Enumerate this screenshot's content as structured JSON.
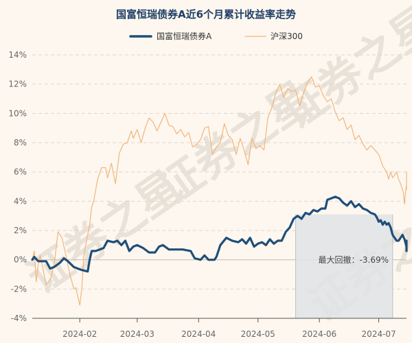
{
  "chart_data": {
    "type": "line",
    "title": "国富恒瑞债券A近6个月累计收益率走势",
    "xlabel": "",
    "ylabel": "",
    "ylim": [
      -4,
      14
    ],
    "y_ticks": [
      -4,
      -2,
      0,
      2,
      4,
      6,
      8,
      10,
      12,
      14
    ],
    "y_tick_labels": [
      "-4%",
      "-2%",
      "0%",
      "2%",
      "4%",
      "6%",
      "8%",
      "10%",
      "12%",
      "14%"
    ],
    "x_range": [
      "2024-01-08",
      "2024-07-15"
    ],
    "x_ticks": [
      {
        "date": "2024-02-01",
        "label": "2024-02"
      },
      {
        "date": "2024-03-01",
        "label": "2024-03"
      },
      {
        "date": "2024-04-01",
        "label": "2024-04"
      },
      {
        "date": "2024-05-01",
        "label": "2024-05"
      },
      {
        "date": "2024-06-01",
        "label": "2024-06"
      },
      {
        "date": "2024-07-01",
        "label": "2024-07"
      }
    ],
    "legend_position": "top",
    "grid": true,
    "drawdown": {
      "label": "最大回撤：-3.69%",
      "start": "2024-05-20",
      "end": "2024-07-08"
    },
    "series": [
      {
        "name": "国富恒瑞债券A",
        "color": "#1f4e79",
        "points": [
          [
            "2024-01-08",
            0.0
          ],
          [
            "2024-01-09",
            0.2
          ],
          [
            "2024-01-11",
            -0.1
          ],
          [
            "2024-01-15",
            -0.1
          ],
          [
            "2024-01-17",
            -0.6
          ],
          [
            "2024-01-19",
            -0.5
          ],
          [
            "2024-01-22",
            -0.2
          ],
          [
            "2024-01-24",
            0.1
          ],
          [
            "2024-01-26",
            -0.1
          ],
          [
            "2024-01-29",
            -0.5
          ],
          [
            "2024-01-31",
            -0.6
          ],
          [
            "2024-02-02",
            -0.7
          ],
          [
            "2024-02-05",
            -0.8
          ],
          [
            "2024-02-06",
            0.0
          ],
          [
            "2024-02-07",
            0.6
          ],
          [
            "2024-02-09",
            0.6
          ],
          [
            "2024-02-13",
            0.8
          ],
          [
            "2024-02-15",
            1.3
          ],
          [
            "2024-02-18",
            1.2
          ],
          [
            "2024-02-20",
            1.3
          ],
          [
            "2024-02-22",
            1.0
          ],
          [
            "2024-02-24",
            1.3
          ],
          [
            "2024-02-26",
            0.6
          ],
          [
            "2024-02-28",
            0.9
          ],
          [
            "2024-03-01",
            1.0
          ],
          [
            "2024-03-04",
            0.8
          ],
          [
            "2024-03-07",
            0.5
          ],
          [
            "2024-03-10",
            0.5
          ],
          [
            "2024-03-12",
            0.9
          ],
          [
            "2024-03-14",
            1.0
          ],
          [
            "2024-03-17",
            0.7
          ],
          [
            "2024-03-20",
            0.7
          ],
          [
            "2024-03-24",
            0.7
          ],
          [
            "2024-03-28",
            0.6
          ],
          [
            "2024-03-30",
            0.1
          ],
          [
            "2024-04-02",
            0.0
          ],
          [
            "2024-04-04",
            0.3
          ],
          [
            "2024-04-06",
            0.0
          ],
          [
            "2024-04-09",
            0.0
          ],
          [
            "2024-04-10",
            0.2
          ],
          [
            "2024-04-12",
            1.0
          ],
          [
            "2024-04-15",
            1.5
          ],
          [
            "2024-04-18",
            1.3
          ],
          [
            "2024-04-21",
            1.2
          ],
          [
            "2024-04-23",
            1.4
          ],
          [
            "2024-04-25",
            1.1
          ],
          [
            "2024-04-27",
            1.5
          ],
          [
            "2024-04-29",
            0.9
          ],
          [
            "2024-05-01",
            1.1
          ],
          [
            "2024-05-03",
            1.2
          ],
          [
            "2024-05-05",
            1.0
          ],
          [
            "2024-05-07",
            1.4
          ],
          [
            "2024-05-09",
            1.1
          ],
          [
            "2024-05-11",
            1.3
          ],
          [
            "2024-05-13",
            1.3
          ],
          [
            "2024-05-15",
            1.9
          ],
          [
            "2024-05-17",
            2.2
          ],
          [
            "2024-05-19",
            2.8
          ],
          [
            "2024-05-21",
            3.0
          ],
          [
            "2024-05-23",
            2.8
          ],
          [
            "2024-05-25",
            3.2
          ],
          [
            "2024-05-27",
            3.1
          ],
          [
            "2024-05-29",
            3.4
          ],
          [
            "2024-05-31",
            3.3
          ],
          [
            "2024-06-02",
            3.5
          ],
          [
            "2024-06-04",
            3.5
          ],
          [
            "2024-06-05",
            4.1
          ],
          [
            "2024-06-07",
            4.2
          ],
          [
            "2024-06-09",
            4.3
          ],
          [
            "2024-06-11",
            4.2
          ],
          [
            "2024-06-13",
            3.9
          ],
          [
            "2024-06-15",
            3.7
          ],
          [
            "2024-06-17",
            4.0
          ],
          [
            "2024-06-19",
            3.6
          ],
          [
            "2024-06-21",
            3.8
          ],
          [
            "2024-06-23",
            3.5
          ],
          [
            "2024-06-25",
            3.4
          ],
          [
            "2024-06-27",
            3.2
          ],
          [
            "2024-06-29",
            3.1
          ],
          [
            "2024-06-30",
            2.9
          ],
          [
            "2024-07-01",
            2.6
          ],
          [
            "2024-07-02",
            2.7
          ],
          [
            "2024-07-03",
            2.4
          ],
          [
            "2024-07-04",
            2.6
          ],
          [
            "2024-07-05",
            2.4
          ],
          [
            "2024-07-06",
            2.5
          ],
          [
            "2024-07-07",
            2.2
          ],
          [
            "2024-07-08",
            1.7
          ],
          [
            "2024-07-09",
            1.5
          ],
          [
            "2024-07-10",
            1.3
          ],
          [
            "2024-07-11",
            1.3
          ],
          [
            "2024-07-12",
            1.5
          ],
          [
            "2024-07-13",
            1.7
          ],
          [
            "2024-07-14",
            1.4
          ],
          [
            "2024-07-14",
            1.2
          ],
          [
            "2024-07-15",
            0.9
          ],
          [
            "2024-07-15",
            0.6
          ],
          [
            "2024-07-15",
            0.8
          ],
          [
            "2024-07-15",
            1.3
          ],
          [
            "2024-07-15",
            1.2
          ]
        ]
      },
      {
        "name": "沪深300",
        "color": "#f2b57a",
        "points": [
          [
            "2024-01-08",
            0.0
          ],
          [
            "2024-01-09",
            0.6
          ],
          [
            "2024-01-10",
            -1.5
          ],
          [
            "2024-01-11",
            -0.3
          ],
          [
            "2024-01-12",
            0.3
          ],
          [
            "2024-01-15",
            -1.7
          ],
          [
            "2024-01-17",
            -1.4
          ],
          [
            "2024-01-19",
            -0.4
          ],
          [
            "2024-01-21",
            1.9
          ],
          [
            "2024-01-23",
            1.5
          ],
          [
            "2024-01-25",
            0.3
          ],
          [
            "2024-01-27",
            -1.0
          ],
          [
            "2024-01-29",
            -2.0
          ],
          [
            "2024-01-30",
            -1.9
          ],
          [
            "2024-02-01",
            -3.1
          ],
          [
            "2024-02-02",
            -2.0
          ],
          [
            "2024-02-03",
            0.3
          ],
          [
            "2024-02-05",
            1.7
          ],
          [
            "2024-02-06",
            2.4
          ],
          [
            "2024-02-07",
            3.6
          ],
          [
            "2024-02-08",
            4.0
          ],
          [
            "2024-02-10",
            5.5
          ],
          [
            "2024-02-12",
            6.3
          ],
          [
            "2024-02-14",
            6.3
          ],
          [
            "2024-02-15",
            5.6
          ],
          [
            "2024-02-17",
            6.6
          ],
          [
            "2024-02-19",
            5.2
          ],
          [
            "2024-02-21",
            7.3
          ],
          [
            "2024-02-23",
            7.9
          ],
          [
            "2024-02-25",
            8.0
          ],
          [
            "2024-02-27",
            8.8
          ],
          [
            "2024-02-28",
            8.3
          ],
          [
            "2024-03-01",
            8.9
          ],
          [
            "2024-03-03",
            8.0
          ],
          [
            "2024-03-05",
            9.0
          ],
          [
            "2024-03-07",
            9.7
          ],
          [
            "2024-03-09",
            9.4
          ],
          [
            "2024-03-11",
            8.8
          ],
          [
            "2024-03-13",
            9.4
          ],
          [
            "2024-03-15",
            10.0
          ],
          [
            "2024-03-17",
            9.2
          ],
          [
            "2024-03-19",
            9.1
          ],
          [
            "2024-03-21",
            8.6
          ],
          [
            "2024-03-23",
            8.9
          ],
          [
            "2024-03-25",
            8.4
          ],
          [
            "2024-03-27",
            8.7
          ],
          [
            "2024-03-29",
            7.7
          ],
          [
            "2024-03-31",
            7.9
          ],
          [
            "2024-04-02",
            8.2
          ],
          [
            "2024-04-04",
            9.0
          ],
          [
            "2024-04-06",
            9.1
          ],
          [
            "2024-04-08",
            7.2
          ],
          [
            "2024-04-10",
            7.7
          ],
          [
            "2024-04-12",
            8.0
          ],
          [
            "2024-04-14",
            9.3
          ],
          [
            "2024-04-16",
            8.5
          ],
          [
            "2024-04-18",
            8.2
          ],
          [
            "2024-04-20",
            7.2
          ],
          [
            "2024-04-22",
            8.3
          ],
          [
            "2024-04-24",
            7.5
          ],
          [
            "2024-04-26",
            6.5
          ],
          [
            "2024-04-28",
            8.3
          ],
          [
            "2024-04-30",
            7.6
          ],
          [
            "2024-05-02",
            7.8
          ],
          [
            "2024-05-04",
            7.5
          ],
          [
            "2024-05-06",
            9.7
          ],
          [
            "2024-05-08",
            10.4
          ],
          [
            "2024-05-10",
            11.4
          ],
          [
            "2024-05-12",
            12.0
          ],
          [
            "2024-05-14",
            11.1
          ],
          [
            "2024-05-16",
            11.7
          ],
          [
            "2024-05-18",
            11.5
          ],
          [
            "2024-05-20",
            11.6
          ],
          [
            "2024-05-22",
            10.5
          ],
          [
            "2024-05-24",
            11.4
          ],
          [
            "2024-05-26",
            12.1
          ],
          [
            "2024-05-28",
            12.5
          ],
          [
            "2024-05-30",
            11.8
          ],
          [
            "2024-06-01",
            11.9
          ],
          [
            "2024-06-03",
            11.2
          ],
          [
            "2024-06-05",
            10.8
          ],
          [
            "2024-06-07",
            11.0
          ],
          [
            "2024-06-09",
            10.1
          ],
          [
            "2024-06-11",
            9.5
          ],
          [
            "2024-06-13",
            9.7
          ],
          [
            "2024-06-15",
            8.9
          ],
          [
            "2024-06-17",
            9.2
          ],
          [
            "2024-06-19",
            8.2
          ],
          [
            "2024-06-21",
            8.5
          ],
          [
            "2024-06-23",
            7.9
          ],
          [
            "2024-06-25",
            7.5
          ],
          [
            "2024-06-27",
            7.8
          ],
          [
            "2024-06-29",
            7.5
          ],
          [
            "2024-07-01",
            7.2
          ],
          [
            "2024-07-03",
            6.4
          ],
          [
            "2024-07-05",
            6.0
          ],
          [
            "2024-07-06",
            5.5
          ],
          [
            "2024-07-07",
            6.0
          ],
          [
            "2024-07-08",
            5.6
          ],
          [
            "2024-07-09",
            5.8
          ],
          [
            "2024-07-10",
            6.0
          ],
          [
            "2024-07-11",
            5.5
          ],
          [
            "2024-07-12",
            5.2
          ],
          [
            "2024-07-13",
            4.8
          ],
          [
            "2024-07-13",
            4.6
          ],
          [
            "2024-07-14",
            3.8
          ],
          [
            "2024-07-14",
            4.5
          ],
          [
            "2024-07-14",
            5.0
          ],
          [
            "2024-07-15",
            4.8
          ],
          [
            "2024-07-15",
            5.4
          ],
          [
            "2024-07-15",
            5.8
          ],
          [
            "2024-07-15",
            6.0
          ]
        ]
      }
    ]
  },
  "watermark": "证券之星"
}
